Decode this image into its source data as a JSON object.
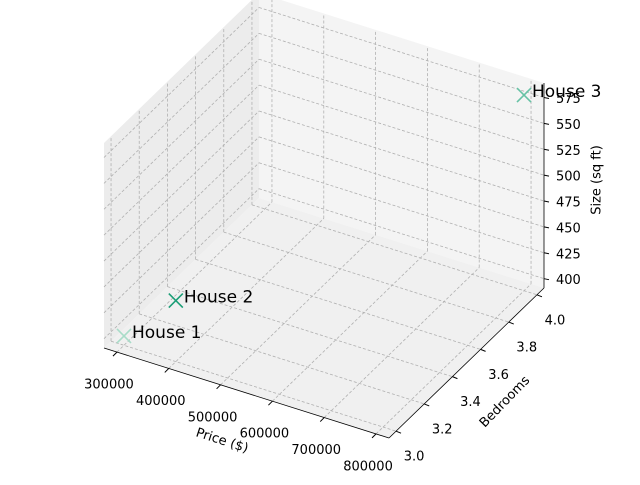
{
  "chart_data": {
    "type": "scatter3d",
    "x": [
      300000,
      400000,
      800000
    ],
    "y": [
      3,
      3,
      4
    ],
    "z": [
      400,
      450,
      580
    ],
    "labels": [
      "House 1",
      "House 2",
      "House 3"
    ],
    "colors": [
      "#a8dcc8",
      "#1b9e77",
      "#66c2a5"
    ],
    "xlabel": "Price ($)",
    "ylabel": "Bedrooms",
    "zlabel": "Size (sq ft)",
    "xlim": [
      275000,
      825000
    ],
    "ylim": [
      2.95,
      4.05
    ],
    "zlim": [
      391,
      589
    ],
    "xticks": [
      300000,
      400000,
      500000,
      600000,
      700000,
      800000
    ],
    "yticks": [
      {
        "value": 3,
        "label": "3.0"
      },
      3.2,
      3.4,
      3.6,
      3.8,
      {
        "value": 4,
        "label": "4.0"
      }
    ],
    "zticks": [
      400,
      425,
      450,
      475,
      500,
      525,
      550,
      575
    ],
    "grid": true
  }
}
